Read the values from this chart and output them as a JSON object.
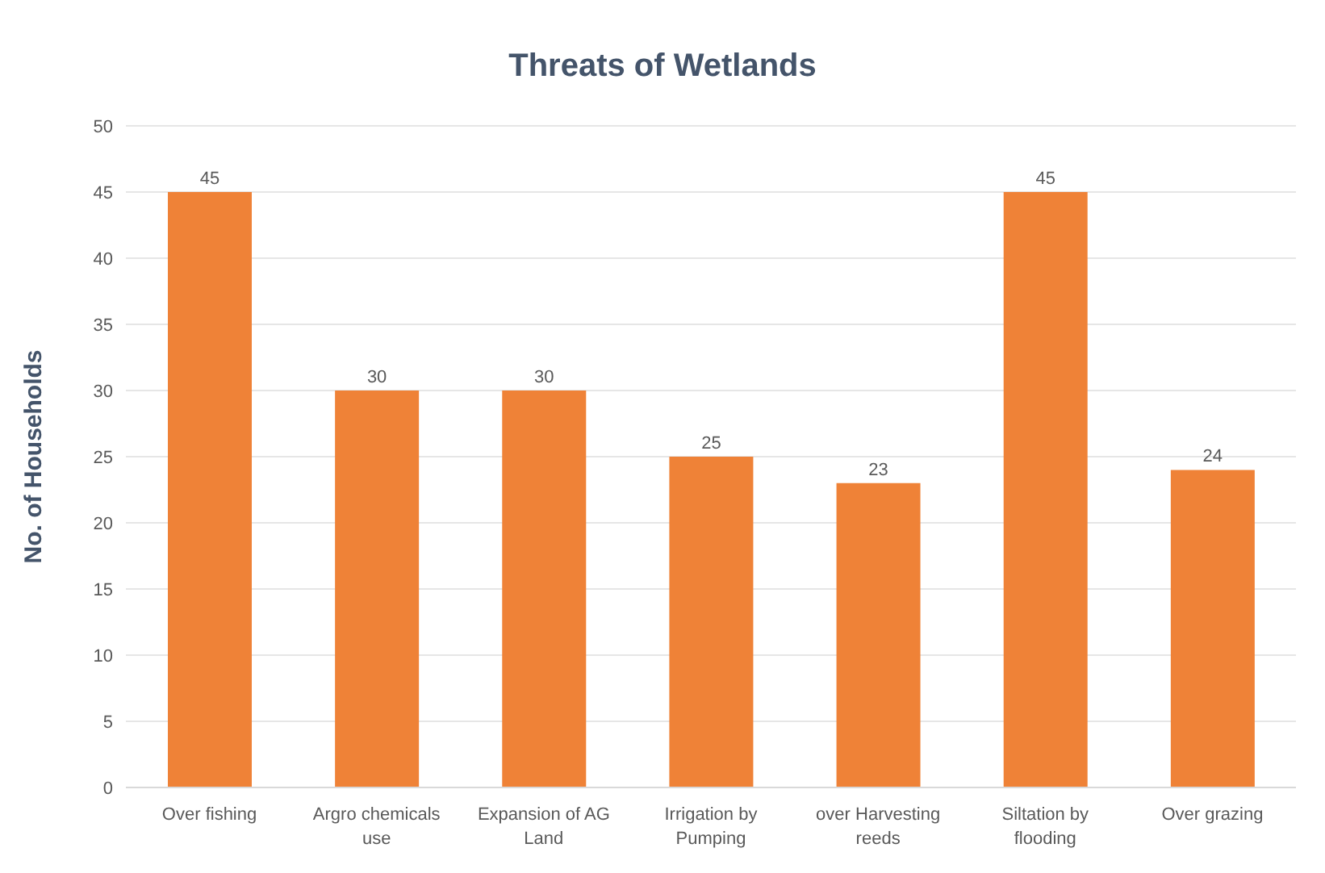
{
  "chart_data": {
    "type": "bar",
    "title": "Threats of Wetlands",
    "ylabel": "No. of Households",
    "categories": [
      "Over fishing",
      "Argro chemicals use",
      "Expansion of AG Land",
      "Irrigation by Pumping",
      "over Harvesting reeds",
      "Siltation by flooding",
      "Over grazing"
    ],
    "values": [
      45,
      30,
      30,
      25,
      23,
      45,
      24
    ],
    "color": "#ef8237",
    "ylim": [
      0,
      50
    ],
    "yticks": [
      0,
      5,
      10,
      15,
      20,
      25,
      30,
      35,
      40,
      45,
      50
    ],
    "grid": "y",
    "data_labels": true
  }
}
